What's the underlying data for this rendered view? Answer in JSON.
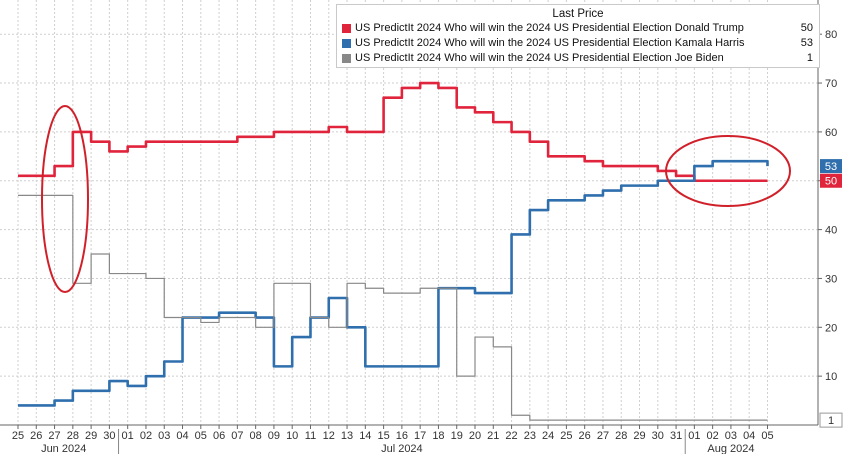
{
  "chart_data": {
    "type": "line",
    "legend": {
      "title": "Last Price",
      "placement": "top-right",
      "entries": [
        {
          "series": "trump",
          "label": "US PredictIt 2024 Who will win the 2024 US Presidential Election Donald Trump",
          "last": "50"
        },
        {
          "series": "harris",
          "label": "US PredictIt 2024 Who will win the 2024 US Presidential Election Kamala Harris",
          "last": "53"
        },
        {
          "series": "biden",
          "label": "US PredictIt 2024 Who will win the 2024 US Presidential Election Joe Biden",
          "last": "1"
        }
      ]
    },
    "ylim": [
      0,
      87
    ],
    "y_ticks": [
      10,
      20,
      30,
      40,
      50,
      60,
      70,
      80
    ],
    "y_tick_labels": [
      "10",
      "20",
      "30",
      "40",
      "50",
      "60",
      "70",
      "80"
    ],
    "x_axis": {
      "days": [
        "25",
        "26",
        "27",
        "28",
        "29",
        "30",
        "01",
        "02",
        "03",
        "04",
        "05",
        "06",
        "07",
        "08",
        "09",
        "10",
        "11",
        "12",
        "13",
        "14",
        "15",
        "16",
        "17",
        "18",
        "19",
        "20",
        "21",
        "22",
        "23",
        "24",
        "25",
        "26",
        "27",
        "28",
        "29",
        "30",
        "31",
        "01",
        "02",
        "03",
        "04",
        "05"
      ],
      "months": [
        {
          "label": "Jun 2024",
          "start_index": 0,
          "end_index": 5
        },
        {
          "label": "Jul 2024",
          "start_index": 6,
          "end_index": 36
        },
        {
          "label": "Aug 2024",
          "start_index": 37,
          "end_index": 41
        }
      ]
    },
    "grid": true,
    "series": [
      {
        "key": "trump",
        "color": "#e0243c",
        "last_label": "50",
        "values": [
          51,
          51,
          53,
          60,
          58,
          56,
          57,
          58,
          58,
          58,
          58,
          58,
          59,
          59,
          60,
          60,
          60,
          61,
          60,
          60,
          67,
          69,
          70,
          69,
          65,
          64,
          62,
          60,
          58,
          55,
          55,
          54,
          53,
          53,
          53,
          52,
          51,
          50,
          50,
          50,
          50,
          50
        ]
      },
      {
        "key": "harris",
        "color": "#2f6fad",
        "last_label": "53",
        "values": [
          4,
          4,
          5,
          7,
          7,
          9,
          8,
          10,
          13,
          22,
          22,
          23,
          23,
          22,
          12,
          18,
          22,
          26,
          20,
          12,
          12,
          12,
          12,
          28,
          28,
          27,
          27,
          39,
          44,
          46,
          46,
          47,
          48,
          49,
          49,
          50,
          50,
          53,
          54,
          54,
          54,
          53
        ]
      },
      {
        "key": "biden",
        "color": "#888888",
        "last_label": "1",
        "values": [
          47,
          47,
          47,
          29,
          35,
          31,
          31,
          30,
          22,
          22,
          21,
          22,
          22,
          20,
          29,
          29,
          22,
          20,
          29,
          28,
          27,
          27,
          28,
          28,
          10,
          18,
          16,
          2,
          1,
          1,
          1,
          1,
          1,
          1,
          1,
          1,
          1,
          1,
          1,
          1,
          1,
          1
        ]
      }
    ]
  }
}
